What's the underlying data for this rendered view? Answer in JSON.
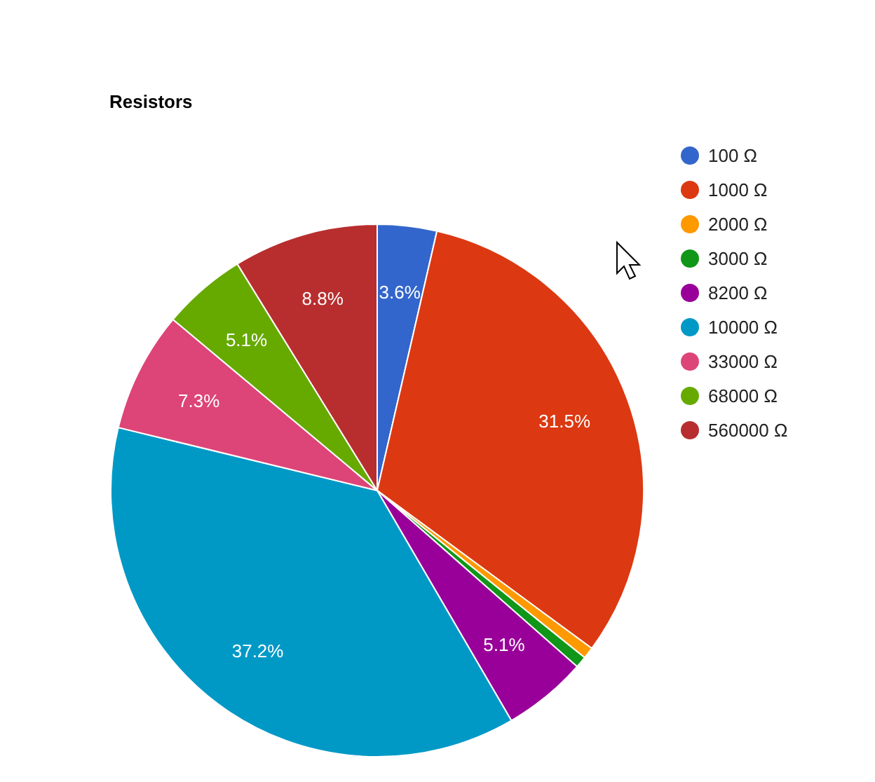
{
  "chart_data": {
    "type": "pie",
    "title": "Resistors",
    "categories": [
      "100 Ω",
      "1000 Ω",
      "2000 Ω",
      "3000 Ω",
      "8200 Ω",
      "10000 Ω",
      "33000 Ω",
      "68000 Ω",
      "560000 Ω"
    ],
    "values": [
      3.6,
      31.5,
      0.7,
      0.7,
      5.1,
      37.2,
      7.3,
      5.1,
      8.8
    ],
    "colors": [
      "#3366cc",
      "#dc3912",
      "#ff9900",
      "#109618",
      "#990099",
      "#0099c6",
      "#dd4477",
      "#66aa00",
      "#b82e2e"
    ],
    "value_labels": [
      "3.6%",
      "31.5%",
      null,
      null,
      "5.1%",
      "37.2%",
      "7.3%",
      "5.1%",
      "8.8%"
    ],
    "legend": "right"
  }
}
